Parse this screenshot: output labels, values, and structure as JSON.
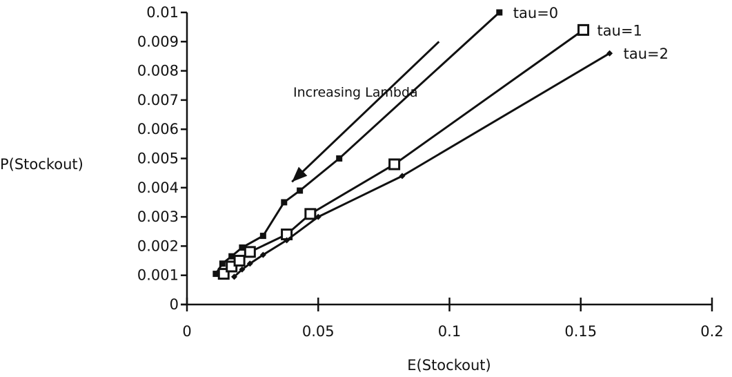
{
  "chart_data": {
    "type": "line",
    "title": "",
    "xlabel": "E(Stockout)",
    "ylabel": "P(Stockout)",
    "xlim": [
      0,
      0.2
    ],
    "ylim": [
      0,
      0.01
    ],
    "x_ticks": [
      "0",
      "0.05",
      "0.1",
      "0.15",
      "0.2"
    ],
    "y_ticks": [
      "0",
      "0.001",
      "0.002",
      "0.003",
      "0.004",
      "0.005",
      "0.006",
      "0.007",
      "0.008",
      "0.009",
      "0.01"
    ],
    "grid": false,
    "legend": "none",
    "annotation": {
      "text": "Increasing Lambda",
      "arrow_from": {
        "x": 0.096,
        "y": 0.009
      },
      "arrow_to": {
        "x": 0.04,
        "y": 0.0042
      }
    },
    "series": [
      {
        "name": "tau=0",
        "marker": "filled-square",
        "color": "#111111",
        "points": [
          {
            "x": 0.011,
            "y": 0.00105
          },
          {
            "x": 0.0135,
            "y": 0.0014
          },
          {
            "x": 0.017,
            "y": 0.00165
          },
          {
            "x": 0.021,
            "y": 0.00195
          },
          {
            "x": 0.029,
            "y": 0.00235
          },
          {
            "x": 0.037,
            "y": 0.0035
          },
          {
            "x": 0.043,
            "y": 0.0039
          },
          {
            "x": 0.058,
            "y": 0.005
          },
          {
            "x": 0.119,
            "y": 0.01
          }
        ]
      },
      {
        "name": "tau=1",
        "marker": "open-square",
        "color": "#111111",
        "points": [
          {
            "x": 0.014,
            "y": 0.00105
          },
          {
            "x": 0.017,
            "y": 0.0013
          },
          {
            "x": 0.02,
            "y": 0.0015
          },
          {
            "x": 0.024,
            "y": 0.0018
          },
          {
            "x": 0.038,
            "y": 0.0024
          },
          {
            "x": 0.047,
            "y": 0.0031
          },
          {
            "x": 0.079,
            "y": 0.0048
          },
          {
            "x": 0.151,
            "y": 0.0094
          }
        ]
      },
      {
        "name": "tau=2",
        "marker": "small-diamond",
        "color": "#111111",
        "points": [
          {
            "x": 0.018,
            "y": 0.00095
          },
          {
            "x": 0.021,
            "y": 0.0012
          },
          {
            "x": 0.024,
            "y": 0.0014
          },
          {
            "x": 0.029,
            "y": 0.0017
          },
          {
            "x": 0.038,
            "y": 0.0022
          },
          {
            "x": 0.05,
            "y": 0.003
          },
          {
            "x": 0.082,
            "y": 0.0044
          },
          {
            "x": 0.161,
            "y": 0.0086
          }
        ]
      }
    ]
  }
}
